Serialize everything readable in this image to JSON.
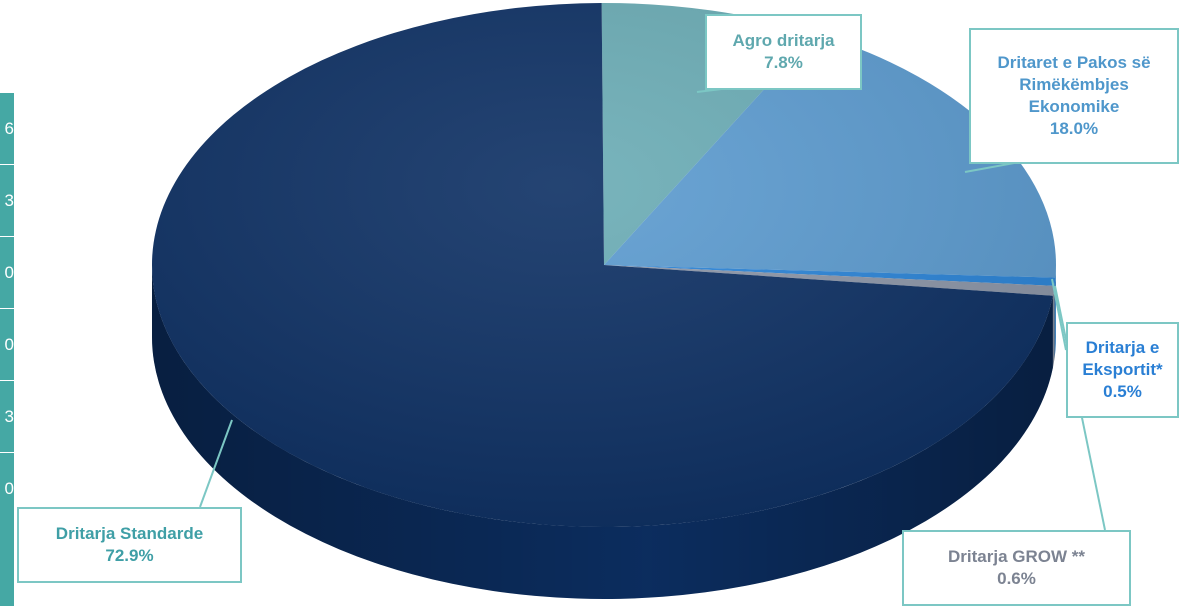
{
  "left_table": {
    "values": [
      "6",
      "3",
      "0",
      "0",
      "3",
      "0"
    ]
  },
  "chart_data": {
    "type": "pie",
    "title": "",
    "slices": [
      {
        "label": "Agro dritarja",
        "value": 7.8,
        "value_label": "7.8%",
        "color": "#6aacb5",
        "label_color": "#5fa8ae"
      },
      {
        "label": "Dritaret e Pakos së Rimëkëmbjes Ekonomike",
        "value": 18.0,
        "value_label": "18.0%",
        "color": "#5b9bd0",
        "label_color": "#4f97cb"
      },
      {
        "label": "Dritarja e Eksportit*",
        "value": 0.5,
        "value_label": "0.5%",
        "color": "#2a84d8",
        "label_color": "#2a7fd4"
      },
      {
        "label": "Dritarja GROW **",
        "value": 0.6,
        "value_label": "0.6%",
        "color": "#8c96a8",
        "label_color": "#7c8392"
      },
      {
        "label": "Dritarja Standarde",
        "value": 72.9,
        "value_label": "72.9%",
        "color": "#0c2f63",
        "label_color": "#3f9fa6"
      }
    ],
    "legend": "none",
    "data_labels": "callouts"
  }
}
